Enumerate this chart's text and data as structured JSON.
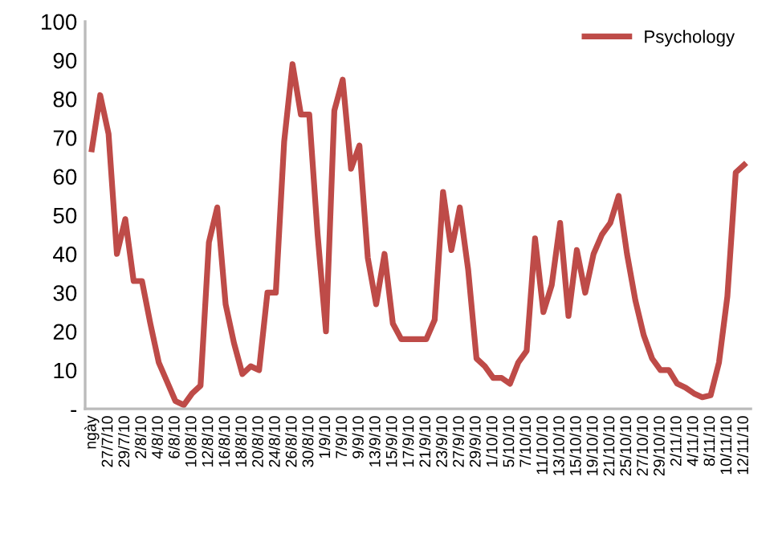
{
  "chart_data": {
    "type": "line",
    "categories": [
      "ngày",
      null,
      "27/7/10",
      null,
      "29/7/10",
      null,
      "2/8/10",
      null,
      "4/8/10",
      null,
      "6/8/10",
      null,
      "10/8/10",
      null,
      "12/8/10",
      null,
      "16/8/10",
      null,
      "18/8/10",
      null,
      "20/8/10",
      null,
      "24/8/10",
      null,
      "26/8/10",
      null,
      "30/8/10",
      null,
      "1/9/10",
      null,
      "7/9/10",
      null,
      "9/9/10",
      null,
      "13/9/10",
      null,
      "15/9/10",
      null,
      "17/9/10",
      null,
      "21/9/10",
      null,
      "23/9/10",
      null,
      "27/9/10",
      null,
      "29/9/10",
      null,
      "1/10/10",
      null,
      "5/10/10",
      null,
      "7/10/10",
      null,
      "11/10/10",
      null,
      "13/10/10",
      null,
      "15/10/10",
      null,
      "19/10/10",
      null,
      "21/10/10",
      null,
      "25/10/10",
      null,
      "27/10/10",
      null,
      "29/10/10",
      null,
      "2/11/10",
      null,
      "4/11/10",
      null,
      "8/11/10",
      null,
      "10/11/10",
      null,
      "12/11/10"
    ],
    "series": [
      {
        "name": "Psychology",
        "color": "#be4b48",
        "values": [
          67,
          81,
          71,
          40,
          49,
          33,
          33,
          22,
          12,
          7,
          2,
          1,
          4,
          6,
          43,
          52,
          27,
          17,
          9,
          11,
          10,
          30,
          30,
          69,
          89,
          76,
          76,
          45,
          20,
          77,
          85,
          62,
          68,
          39,
          27,
          40,
          22,
          18,
          18,
          18,
          18,
          23,
          56,
          41,
          52,
          36,
          13,
          11,
          8,
          8,
          6.5,
          12,
          15,
          44,
          25,
          32,
          48,
          24,
          41,
          30,
          40,
          45,
          48,
          55,
          40,
          28,
          19,
          13,
          10,
          10,
          6.5,
          5.5,
          4,
          3,
          3.5,
          12,
          29,
          61,
          63
        ]
      }
    ],
    "ylim": [
      0,
      100
    ],
    "yticks": [
      {
        "value": 0,
        "label": "-"
      },
      10,
      20,
      30,
      40,
      50,
      60,
      70,
      80,
      90,
      100
    ],
    "legend": "top right",
    "grid": false,
    "marker": "none",
    "line_style": "solid"
  }
}
